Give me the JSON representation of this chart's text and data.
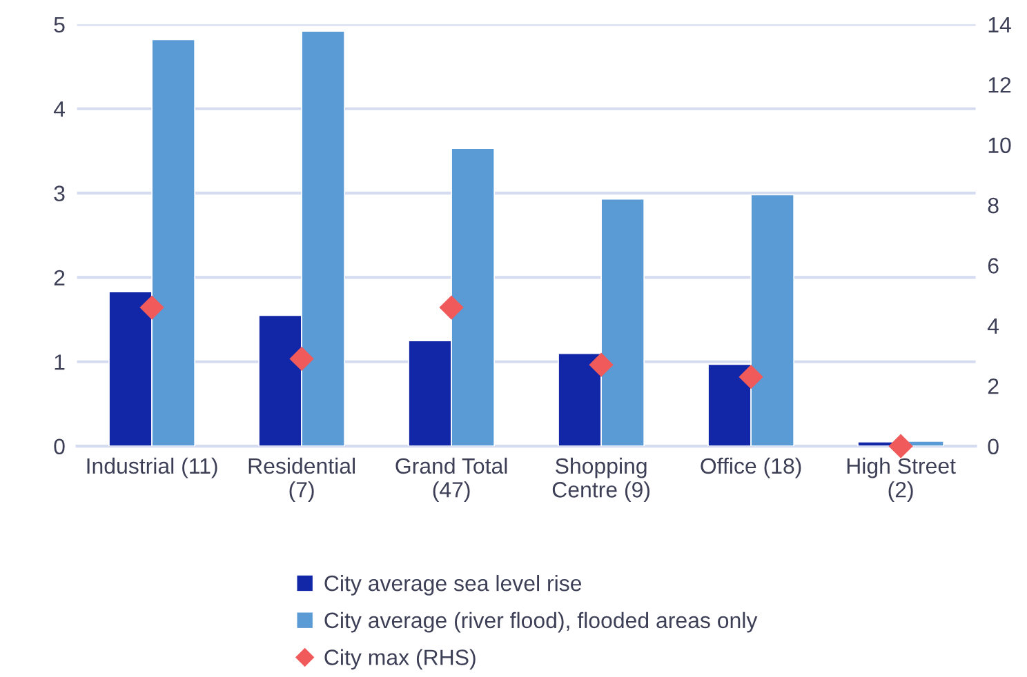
{
  "chart_data": {
    "type": "bar",
    "categories": [
      "Industrial (11)",
      "Residential\n(7)",
      "Grand Total\n(47)",
      "Shopping\nCentre (9)",
      "Office (18)",
      "High Street\n(2)"
    ],
    "series": [
      {
        "name": "City average sea level rise",
        "color": "#1226a8",
        "values": [
          1.83,
          1.55,
          1.25,
          1.1,
          0.97,
          0.05
        ]
      },
      {
        "name": "City average (river flood), flooded areas only",
        "color": "#5b9bd5",
        "values": [
          4.82,
          4.92,
          3.53,
          2.93,
          2.98,
          0.06
        ]
      },
      {
        "name": "City max (RHS)",
        "type": "scatter",
        "axis": "y2",
        "color": "#f05a5a",
        "values": [
          4.6,
          2.9,
          4.6,
          2.7,
          2.3,
          0.0
        ]
      }
    ],
    "ylim": [
      0,
      5
    ],
    "yticks": [
      0,
      1,
      2,
      3,
      4,
      5
    ],
    "y2lim": [
      0,
      14
    ],
    "y2ticks": [
      0,
      2,
      4,
      6,
      8,
      10,
      12,
      14
    ],
    "grid": "y",
    "legend": "bottom",
    "marker": "diamond"
  }
}
